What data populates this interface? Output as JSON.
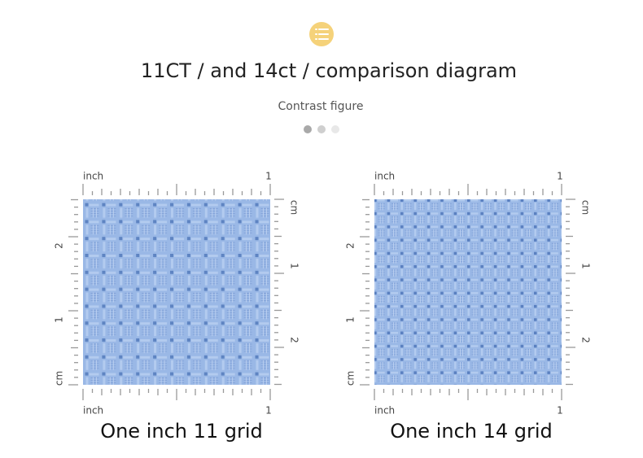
{
  "header": {
    "title": "11CT / and 14ct / comparison diagram",
    "subtitle": "Contrast figure"
  },
  "panels": [
    {
      "top_unit": "inch",
      "top_end": "1",
      "bottom_unit": "inch",
      "bottom_end": "1",
      "left_unit": "cm",
      "left_labels": [
        "2",
        "1"
      ],
      "right_unit": "cm",
      "right_labels": [
        "1",
        "2"
      ],
      "caption": "One inch 11 grid"
    },
    {
      "top_unit": "inch",
      "top_end": "1",
      "bottom_unit": "inch",
      "bottom_end": "1",
      "left_unit": "cm",
      "left_labels": [
        "2",
        "1"
      ],
      "right_unit": "cm",
      "right_labels": [
        "1",
        "2"
      ],
      "caption": "One inch 14 grid"
    }
  ]
}
